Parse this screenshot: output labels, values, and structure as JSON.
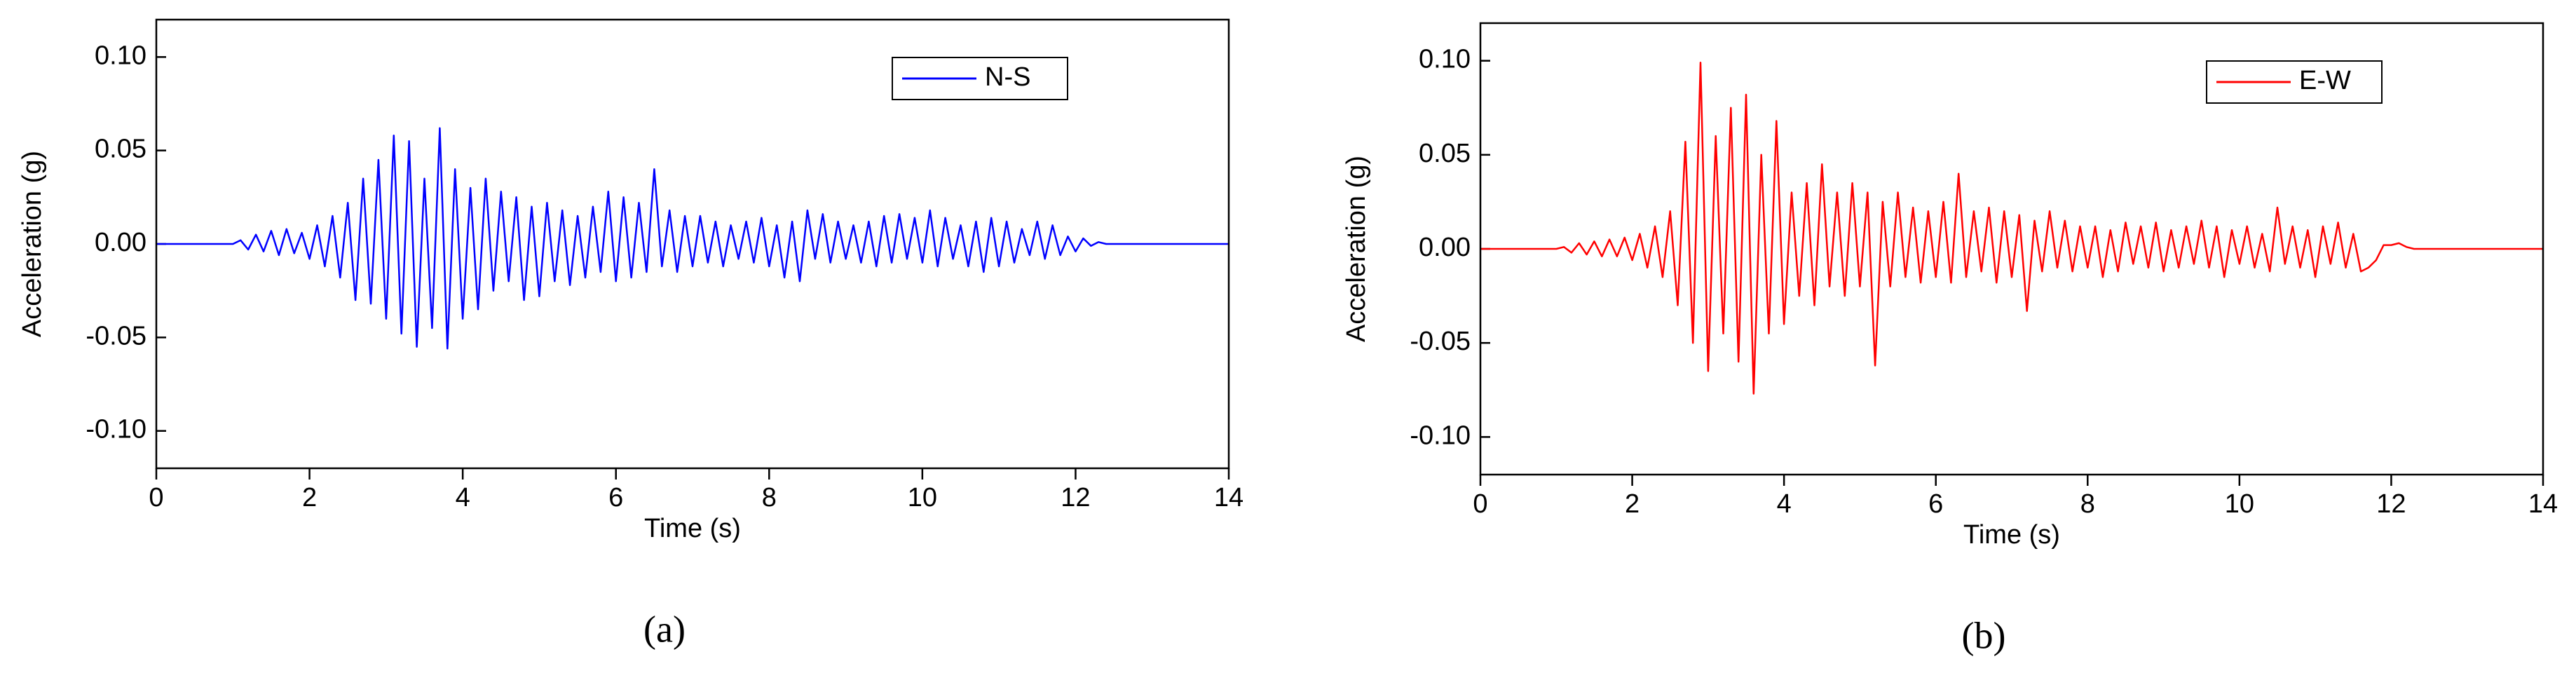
{
  "chart_data": [
    {
      "type": "line",
      "caption": "(a)",
      "xlabel": "Time (s)",
      "ylabel": "Acceleration (g)",
      "xlim": [
        0,
        14
      ],
      "xticks": [
        0,
        2,
        4,
        6,
        8,
        10,
        12,
        14
      ],
      "ylim": [
        -0.12,
        0.12
      ],
      "yticks": [
        {
          "value": -0.1,
          "label": "-0.10"
        },
        {
          "value": -0.05,
          "label": "-0.05"
        },
        {
          "value": 0,
          "label": "0.00"
        },
        {
          "value": 0.05,
          "label": "0.05"
        },
        {
          "value": 0.1,
          "label": "0.10"
        }
      ],
      "legend": "upper right",
      "x": [
        0,
        1.0,
        1.1,
        1.2,
        1.3,
        1.4,
        1.5,
        1.6,
        1.7,
        1.8,
        1.9,
        2.0,
        2.1,
        2.2,
        2.3,
        2.4,
        2.5,
        2.6,
        2.7,
        2.8,
        2.9,
        3.0,
        3.1,
        3.2,
        3.3,
        3.4,
        3.5,
        3.6,
        3.7,
        3.8,
        3.9,
        4.0,
        4.1,
        4.2,
        4.3,
        4.4,
        4.5,
        4.6,
        4.7,
        4.8,
        4.9,
        5.0,
        5.1,
        5.2,
        5.3,
        5.4,
        5.5,
        5.6,
        5.7,
        5.8,
        5.9,
        6.0,
        6.1,
        6.2,
        6.3,
        6.4,
        6.5,
        6.6,
        6.7,
        6.8,
        6.9,
        7.0,
        7.1,
        7.2,
        7.3,
        7.4,
        7.5,
        7.6,
        7.7,
        7.8,
        7.9,
        8.0,
        8.1,
        8.2,
        8.3,
        8.4,
        8.5,
        8.6,
        8.7,
        8.8,
        8.9,
        9.0,
        9.1,
        9.2,
        9.3,
        9.4,
        9.5,
        9.6,
        9.7,
        9.8,
        9.9,
        10.0,
        10.1,
        10.2,
        10.3,
        10.4,
        10.5,
        10.6,
        10.7,
        10.8,
        10.9,
        11.0,
        11.1,
        11.2,
        11.3,
        11.4,
        11.5,
        11.6,
        11.7,
        11.8,
        11.9,
        12.0,
        12.1,
        12.2,
        12.3,
        12.4,
        14
      ],
      "series": [
        {
          "name": "N-S",
          "color": "#0000ff",
          "values": [
            0,
            0,
            0.002,
            -0.003,
            0.005,
            -0.004,
            0.007,
            -0.006,
            0.008,
            -0.005,
            0.006,
            -0.008,
            0.01,
            -0.012,
            0.015,
            -0.018,
            0.022,
            -0.03,
            0.035,
            -0.032,
            0.045,
            -0.04,
            0.058,
            -0.048,
            0.055,
            -0.055,
            0.035,
            -0.045,
            0.062,
            -0.056,
            0.04,
            -0.04,
            0.03,
            -0.035,
            0.035,
            -0.025,
            0.028,
            -0.02,
            0.025,
            -0.03,
            0.02,
            -0.028,
            0.022,
            -0.02,
            0.018,
            -0.022,
            0.015,
            -0.018,
            0.02,
            -0.015,
            0.028,
            -0.02,
            0.025,
            -0.018,
            0.022,
            -0.015,
            0.04,
            -0.012,
            0.018,
            -0.015,
            0.015,
            -0.012,
            0.015,
            -0.01,
            0.012,
            -0.012,
            0.01,
            -0.008,
            0.012,
            -0.01,
            0.014,
            -0.012,
            0.01,
            -0.018,
            0.012,
            -0.02,
            0.018,
            -0.008,
            0.016,
            -0.01,
            0.012,
            -0.008,
            0.01,
            -0.01,
            0.012,
            -0.012,
            0.015,
            -0.01,
            0.016,
            -0.008,
            0.014,
            -0.01,
            0.018,
            -0.012,
            0.014,
            -0.008,
            0.01,
            -0.012,
            0.012,
            -0.015,
            0.014,
            -0.012,
            0.012,
            -0.01,
            0.008,
            -0.006,
            0.012,
            -0.008,
            0.01,
            -0.006,
            0.004,
            -0.004,
            0.003,
            -0.001,
            0.001,
            0,
            0
          ]
        }
      ]
    },
    {
      "type": "line",
      "caption": "(b)",
      "xlabel": "Time (s)",
      "ylabel": "Acceleration (g)",
      "xlim": [
        0,
        14
      ],
      "xticks": [
        0,
        2,
        4,
        6,
        8,
        10,
        12,
        14
      ],
      "ylim": [
        -0.12,
        0.12
      ],
      "yticks": [
        {
          "value": -0.1,
          "label": "-0.10"
        },
        {
          "value": -0.05,
          "label": "-0.05"
        },
        {
          "value": 0,
          "label": "0.00"
        },
        {
          "value": 0.05,
          "label": "0.05"
        },
        {
          "value": 0.1,
          "label": "0.10"
        }
      ],
      "legend": "upper right",
      "x": [
        0,
        1.0,
        1.1,
        1.2,
        1.3,
        1.4,
        1.5,
        1.6,
        1.7,
        1.8,
        1.9,
        2.0,
        2.1,
        2.2,
        2.3,
        2.4,
        2.5,
        2.6,
        2.7,
        2.8,
        2.9,
        3.0,
        3.1,
        3.2,
        3.3,
        3.4,
        3.5,
        3.6,
        3.7,
        3.8,
        3.9,
        4.0,
        4.1,
        4.2,
        4.3,
        4.4,
        4.5,
        4.6,
        4.7,
        4.8,
        4.9,
        5.0,
        5.1,
        5.2,
        5.3,
        5.4,
        5.5,
        5.6,
        5.7,
        5.8,
        5.9,
        6.0,
        6.1,
        6.2,
        6.3,
        6.4,
        6.5,
        6.6,
        6.7,
        6.8,
        6.9,
        7.0,
        7.1,
        7.2,
        7.3,
        7.4,
        7.5,
        7.6,
        7.7,
        7.8,
        7.9,
        8.0,
        8.1,
        8.2,
        8.3,
        8.4,
        8.5,
        8.6,
        8.7,
        8.8,
        8.9,
        9.0,
        9.1,
        9.2,
        9.3,
        9.4,
        9.5,
        9.6,
        9.7,
        9.8,
        9.9,
        10.0,
        10.1,
        10.2,
        10.3,
        10.4,
        10.5,
        10.6,
        10.7,
        10.8,
        10.9,
        11.0,
        11.1,
        11.2,
        11.3,
        11.4,
        11.5,
        11.6,
        11.7,
        11.8,
        11.9,
        12.0,
        12.1,
        12.2,
        12.3,
        12.4,
        14
      ],
      "series": [
        {
          "name": "E-W",
          "color": "#ff0000",
          "values": [
            0,
            0,
            0.001,
            -0.002,
            0.003,
            -0.003,
            0.004,
            -0.004,
            0.005,
            -0.004,
            0.006,
            -0.006,
            0.008,
            -0.01,
            0.012,
            -0.015,
            0.02,
            -0.03,
            0.057,
            -0.05,
            0.099,
            -0.065,
            0.06,
            -0.045,
            0.075,
            -0.06,
            0.082,
            -0.077,
            0.05,
            -0.045,
            0.068,
            -0.04,
            0.03,
            -0.025,
            0.035,
            -0.03,
            0.045,
            -0.02,
            0.03,
            -0.025,
            0.035,
            -0.02,
            0.03,
            -0.062,
            0.025,
            -0.02,
            0.03,
            -0.015,
            0.022,
            -0.018,
            0.02,
            -0.015,
            0.025,
            -0.018,
            0.04,
            -0.015,
            0.02,
            -0.012,
            0.022,
            -0.018,
            0.02,
            -0.015,
            0.018,
            -0.033,
            0.015,
            -0.012,
            0.02,
            -0.01,
            0.015,
            -0.012,
            0.012,
            -0.01,
            0.012,
            -0.015,
            0.01,
            -0.012,
            0.014,
            -0.008,
            0.012,
            -0.01,
            0.014,
            -0.012,
            0.01,
            -0.01,
            0.012,
            -0.008,
            0.015,
            -0.01,
            0.012,
            -0.015,
            0.01,
            -0.008,
            0.012,
            -0.01,
            0.008,
            -0.012,
            0.022,
            -0.008,
            0.012,
            -0.01,
            0.01,
            -0.015,
            0.012,
            -0.008,
            0.014,
            -0.01,
            0.008,
            -0.012,
            -0.01,
            -0.006,
            0.002,
            0.002,
            0.003,
            0.001,
            0.0,
            0,
            0
          ]
        }
      ]
    }
  ]
}
